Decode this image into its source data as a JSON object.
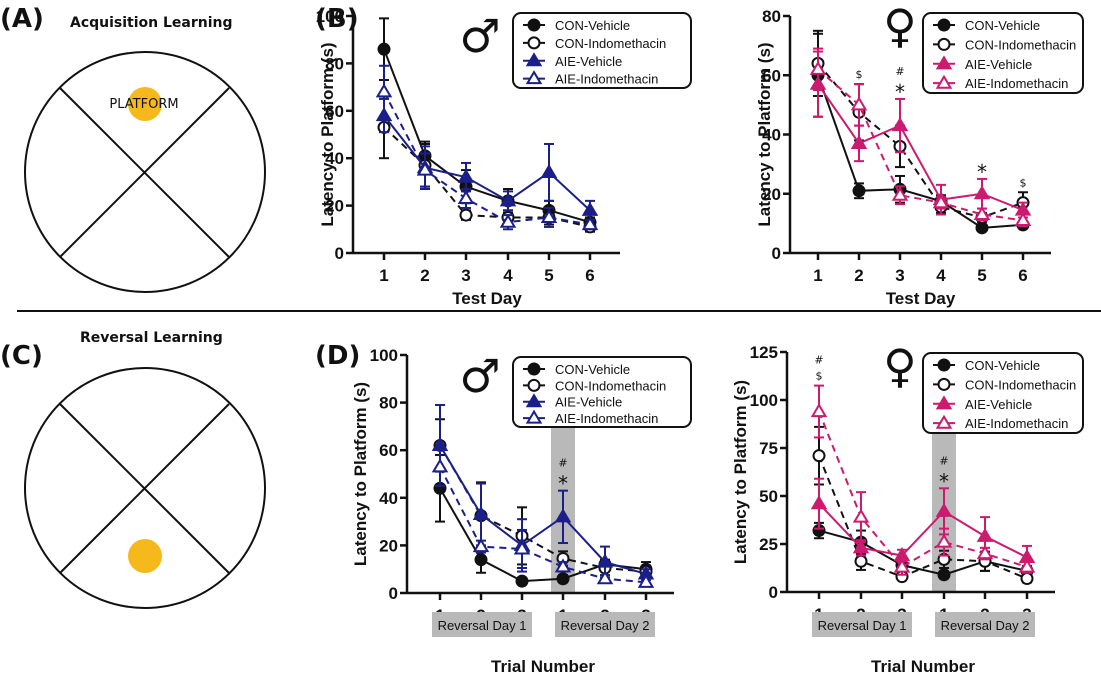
{
  "figure": {
    "colors": {
      "con": "#111111",
      "aie_male": "#1a1f8a",
      "aie_female": "#cc1a6e",
      "platform": "#f6b91c",
      "band": "#b9b9b9"
    },
    "panel_a": {
      "label": "(A)",
      "title": "Acquisition Learning",
      "platform_label": "PLATFORM",
      "platform_quadrant": "top"
    },
    "panel_c": {
      "label": "(C)",
      "title": "Reversal Learning",
      "platform_quadrant": "bottom"
    },
    "panel_b_label": "(B)",
    "panel_d_label": "(D)"
  },
  "chart_data": [
    {
      "id": "b-male",
      "type": "line",
      "sex_symbol": "♂",
      "title": "",
      "xlabel": "Test Day",
      "ylabel": "Latency to Platform (s)",
      "categories": [
        "1",
        "2",
        "3",
        "4",
        "5",
        "6"
      ],
      "ylim": [
        0,
        100
      ],
      "yticks": [
        0,
        20,
        40,
        60,
        80,
        100
      ],
      "legend_position": "top-right",
      "legend": [
        "CON-Vehicle",
        "CON-Indomethacin",
        "AIE-Vehicle",
        "AIE-Indomethacin"
      ],
      "series": [
        {
          "name": "CON-Vehicle",
          "group": "con",
          "marker": "filled-circle",
          "dash": false,
          "values": [
            86,
            41,
            28,
            22,
            18,
            13
          ],
          "errors": [
            13,
            6,
            7,
            5,
            4,
            2
          ]
        },
        {
          "name": "CON-Indomethacin",
          "group": "con",
          "marker": "open-circle",
          "dash": true,
          "values": [
            53,
            37,
            16,
            15,
            15,
            11
          ],
          "errors": [
            13,
            9,
            2,
            3,
            3,
            2
          ]
        },
        {
          "name": "AIE-Vehicle",
          "group": "aie",
          "marker": "filled-triangle",
          "dash": false,
          "values": [
            58,
            36,
            32,
            22,
            34,
            18
          ],
          "errors": [
            7,
            9,
            6,
            4,
            12,
            4
          ]
        },
        {
          "name": "AIE-Indomethacin",
          "group": "aie",
          "marker": "open-triangle",
          "dash": true,
          "values": [
            68,
            35,
            23,
            13,
            15,
            12
          ],
          "errors": [
            11,
            7,
            4,
            3,
            4,
            2
          ]
        }
      ],
      "annotations": []
    },
    {
      "id": "b-female",
      "type": "line",
      "sex_symbol": "♀",
      "title": "",
      "xlabel": "Test Day",
      "ylabel": "Latency to Platform (s)",
      "categories": [
        "1",
        "2",
        "3",
        "4",
        "5",
        "6"
      ],
      "ylim": [
        0,
        80
      ],
      "yticks": [
        0,
        20,
        40,
        60,
        80
      ],
      "legend_position": "top-right",
      "legend": [
        "CON-Vehicle",
        "CON-Indomethacin",
        "AIE-Vehicle",
        "AIE-Indomethacin"
      ],
      "series": [
        {
          "name": "CON-Vehicle",
          "group": "con",
          "marker": "filled-circle",
          "dash": false,
          "values": [
            60,
            21,
            21.5,
            17.5,
            8.5,
            9.5
          ],
          "errors": [
            14,
            2.5,
            4.5,
            2,
            1,
            1
          ]
        },
        {
          "name": "CON-Indomethacin",
          "group": "con",
          "marker": "open-circle",
          "dash": true,
          "values": [
            64,
            47.5,
            36,
            15.5,
            12,
            17
          ],
          "errors": [
            11,
            9.5,
            7,
            2,
            1.5,
            3.5
          ]
        },
        {
          "name": "AIE-Vehicle",
          "group": "aie",
          "marker": "filled-triangle",
          "dash": false,
          "values": [
            57,
            37,
            43,
            18,
            20,
            14.5
          ],
          "errors": [
            11,
            6,
            9,
            5,
            5,
            2.5
          ]
        },
        {
          "name": "AIE-Indomethacin",
          "group": "aie",
          "marker": "open-triangle",
          "dash": true,
          "values": [
            62,
            50,
            19.5,
            17,
            13,
            11
          ],
          "errors": [
            7,
            7,
            3,
            2,
            2,
            2
          ]
        }
      ],
      "annotations": [
        {
          "x": "2",
          "text": "$"
        },
        {
          "x": "3",
          "text": "#"
        },
        {
          "x": "3",
          "text": "*"
        },
        {
          "x": "5",
          "text": "*"
        },
        {
          "x": "6",
          "text": "$"
        }
      ]
    },
    {
      "id": "d-male",
      "type": "line",
      "sex_symbol": "♂",
      "title": "",
      "xlabel": "Trial Number",
      "ylabel": "Latency to Platform (s)",
      "categories": [
        "1",
        "2",
        "3",
        "1",
        "2",
        "3"
      ],
      "groups": [
        {
          "label": "Reversal  Day 1",
          "span": [
            0,
            2
          ]
        },
        {
          "label": "Reversal  Day 2",
          "span": [
            3,
            5
          ]
        }
      ],
      "highlight_index": 3,
      "ylim": [
        0,
        100
      ],
      "yticks": [
        0,
        20,
        40,
        60,
        80,
        100
      ],
      "legend_position": "top-right",
      "legend": [
        "CON-Vehicle",
        "CON-Indomethacin",
        "AIE-Vehicle",
        "AIE-Indomethacin"
      ],
      "series": [
        {
          "name": "CON-Vehicle",
          "group": "con",
          "marker": "filled-circle",
          "dash": false,
          "values": [
            44,
            14,
            5,
            6,
            12,
            10
          ],
          "errors": [
            14,
            5.5,
            1,
            1.5,
            2,
            3
          ]
        },
        {
          "name": "CON-Indomethacin",
          "group": "con",
          "marker": "open-circle",
          "dash": true,
          "values": [
            62,
            32.5,
            24,
            14.5,
            10.5,
            9
          ],
          "errors": [
            11,
            14,
            12,
            3,
            3,
            2.5
          ]
        },
        {
          "name": "AIE-Vehicle",
          "group": "aie",
          "marker": "filled-triangle",
          "dash": false,
          "values": [
            62,
            33,
            20,
            32,
            13,
            8
          ],
          "errors": [
            17,
            13,
            11,
            11,
            6.5,
            2
          ]
        },
        {
          "name": "AIE-Indomethacin",
          "group": "aie",
          "marker": "open-triangle",
          "dash": true,
          "values": [
            53,
            19.5,
            18.5,
            11,
            6,
            4.5
          ],
          "errors": [
            8,
            2.5,
            8,
            2,
            1.5,
            1
          ]
        }
      ],
      "annotations": [
        {
          "x_index": 3,
          "text": "#"
        },
        {
          "x_index": 3,
          "text": "*"
        }
      ]
    },
    {
      "id": "d-female",
      "type": "line",
      "sex_symbol": "♀",
      "title": "",
      "xlabel": "Trial Number",
      "ylabel": "Latency to Platform (s)",
      "categories": [
        "1",
        "2",
        "3",
        "1",
        "2",
        "3"
      ],
      "groups": [
        {
          "label": "Reversal  Day 1",
          "span": [
            0,
            2
          ]
        },
        {
          "label": "Reversal  Day 2",
          "span": [
            3,
            5
          ]
        }
      ],
      "highlight_index": 3,
      "ylim": [
        0,
        125
      ],
      "yticks": [
        0,
        25,
        50,
        75,
        100,
        125
      ],
      "legend_position": "top-right",
      "legend": [
        "CON-Vehicle",
        "CON-Indomethacin",
        "AIE-Vehicle",
        "AIE-Indomethacin"
      ],
      "series": [
        {
          "name": "CON-Vehicle",
          "group": "con",
          "marker": "filled-circle",
          "dash": false,
          "values": [
            32,
            26,
            14,
            9,
            16,
            11
          ],
          "errors": [
            4,
            6,
            3,
            1.5,
            5,
            2.5
          ]
        },
        {
          "name": "CON-Indomethacin",
          "group": "con",
          "marker": "open-circle",
          "dash": true,
          "values": [
            71,
            16,
            8,
            17,
            16,
            7
          ],
          "errors": [
            15,
            4.5,
            1.5,
            4.5,
            5,
            2
          ]
        },
        {
          "name": "AIE-Vehicle",
          "group": "aie",
          "marker": "filled-triangle",
          "dash": false,
          "values": [
            46,
            23,
            19,
            42,
            29,
            18
          ],
          "errors": [
            13,
            4,
            3,
            12,
            10,
            6
          ]
        },
        {
          "name": "AIE-Indomethacin",
          "group": "aie",
          "marker": "open-triangle",
          "dash": true,
          "values": [
            94,
            39,
            13,
            26,
            20,
            13
          ],
          "errors": [
            13.5,
            13,
            4,
            7,
            3,
            3
          ]
        }
      ],
      "annotations": [
        {
          "x_index": 0,
          "text": "#"
        },
        {
          "x_index": 0,
          "text": "$"
        },
        {
          "x_index": 3,
          "text": "#"
        },
        {
          "x_index": 3,
          "text": "*"
        }
      ]
    }
  ]
}
